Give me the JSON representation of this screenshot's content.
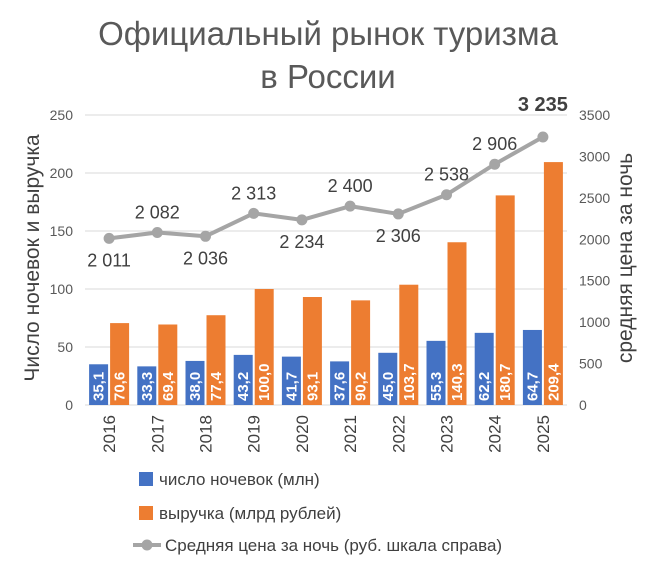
{
  "chart_data": {
    "type": "bar",
    "title_line1": "Официальный рынок туризма",
    "title_line2": "в России",
    "ylabel_left": "Число ночевок и выручка",
    "ylabel_right": "средняя цена за ночь",
    "categories": [
      "2016",
      "2017",
      "2018",
      "2019",
      "2020",
      "2021",
      "2022",
      "2023",
      "2024",
      "2025"
    ],
    "ylim_left": [
      0,
      250
    ],
    "yticks_left": [
      "0",
      "50",
      "100",
      "150",
      "200",
      "250"
    ],
    "ylim_right": [
      0,
      3500
    ],
    "yticks_right": [
      "0",
      "500",
      "1000",
      "1500",
      "2000",
      "2500",
      "3000",
      "3500"
    ],
    "grid": true,
    "legend_position": "bottom",
    "series": [
      {
        "name": "число ночевок (млн)",
        "type": "bar",
        "axis": "left",
        "color": "#4472C4",
        "values": [
          35.1,
          33.3,
          38.0,
          43.2,
          41.7,
          37.6,
          45.0,
          55.3,
          62.2,
          64.7
        ],
        "labels": [
          "35,1",
          "33,3",
          "38,0",
          "43,2",
          "41,7",
          "37,6",
          "45,0",
          "55,3",
          "62,2",
          "64,7"
        ]
      },
      {
        "name": "выручка (млрд рублей)",
        "type": "bar",
        "axis": "left",
        "color": "#ED7D31",
        "values": [
          70.6,
          69.4,
          77.4,
          100.0,
          93.1,
          90.2,
          103.7,
          140.3,
          180.7,
          209.4
        ],
        "labels": [
          "70,6",
          "69,4",
          "77,4",
          "100,0",
          "93,1",
          "90,2",
          "103,7",
          "140,3",
          "180,7",
          "209,4"
        ]
      },
      {
        "name": "Средняя цена за ночь (руб. шкала справа)",
        "type": "line",
        "axis": "right",
        "color": "#A5A5A5",
        "values": [
          2011,
          2082,
          2036,
          2313,
          2234,
          2400,
          2306,
          2538,
          2906,
          3235
        ],
        "labels": [
          "2 011",
          "2 082",
          "2 036",
          "2 313",
          "2 234",
          "2 400",
          "2 306",
          "2 538",
          "2 906",
          "3 235"
        ]
      }
    ]
  }
}
